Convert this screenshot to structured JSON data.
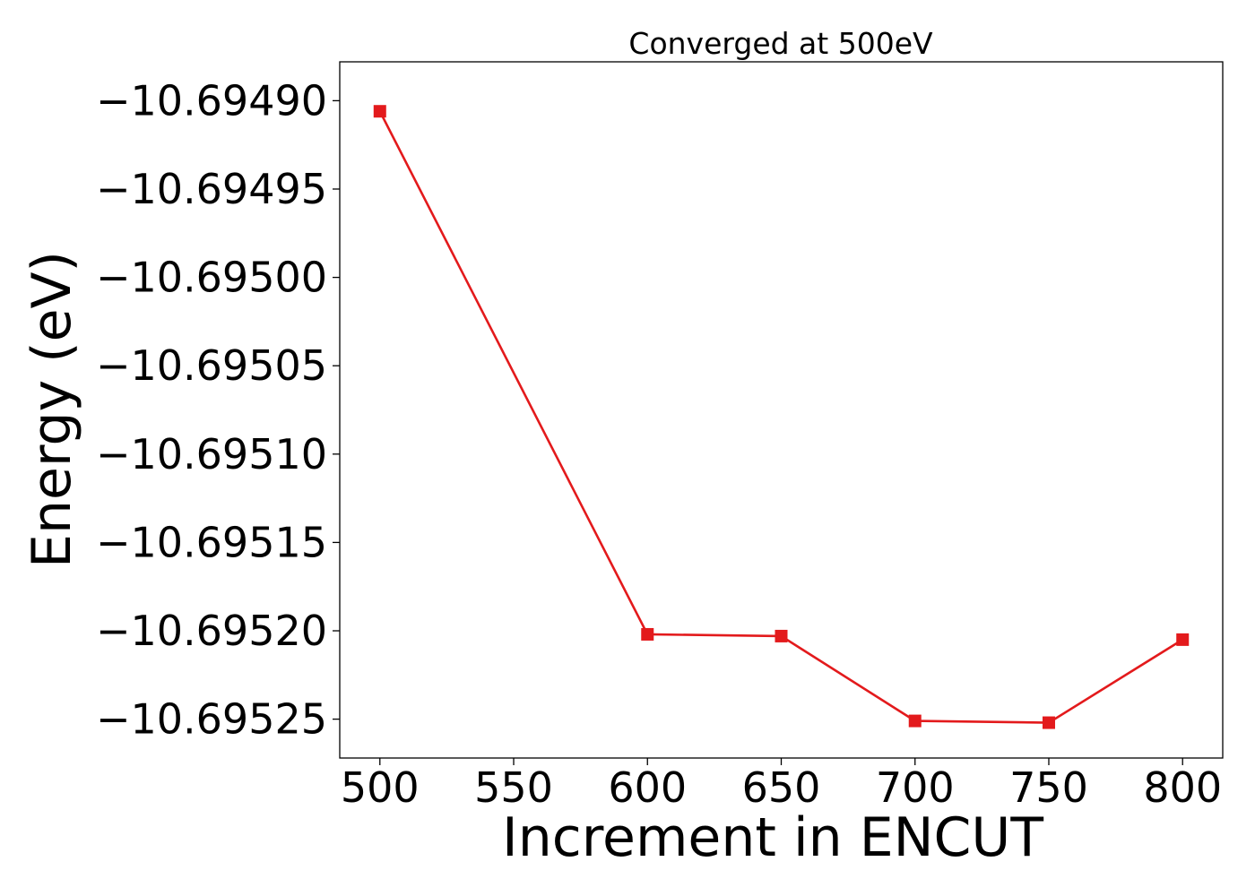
{
  "chart_data": {
    "type": "line",
    "title": "Converged at 500eV",
    "xlabel": "Increment in ENCUT",
    "ylabel": "Energy (eV)",
    "xlim": [
      485,
      815
    ],
    "ylim": [
      -10.695272,
      -10.694878
    ],
    "xticks": [
      500,
      550,
      600,
      650,
      700,
      750,
      800
    ],
    "yticks": [
      -10.6949,
      -10.69495,
      -10.695,
      -10.69505,
      -10.6951,
      -10.69515,
      -10.6952,
      -10.69525
    ],
    "ytick_labels": [
      "−10.69490",
      "−10.69495",
      "−10.69500",
      "−10.69505",
      "−10.69510",
      "−10.69515",
      "−10.69520",
      "−10.69525"
    ],
    "grid": false,
    "series": [
      {
        "color": "#e31a1c",
        "marker": "square",
        "x": [
          500,
          600,
          650,
          700,
          750,
          800
        ],
        "y": [
          -10.694906,
          -10.695202,
          -10.695203,
          -10.695251,
          -10.695252,
          -10.695205
        ]
      }
    ]
  }
}
